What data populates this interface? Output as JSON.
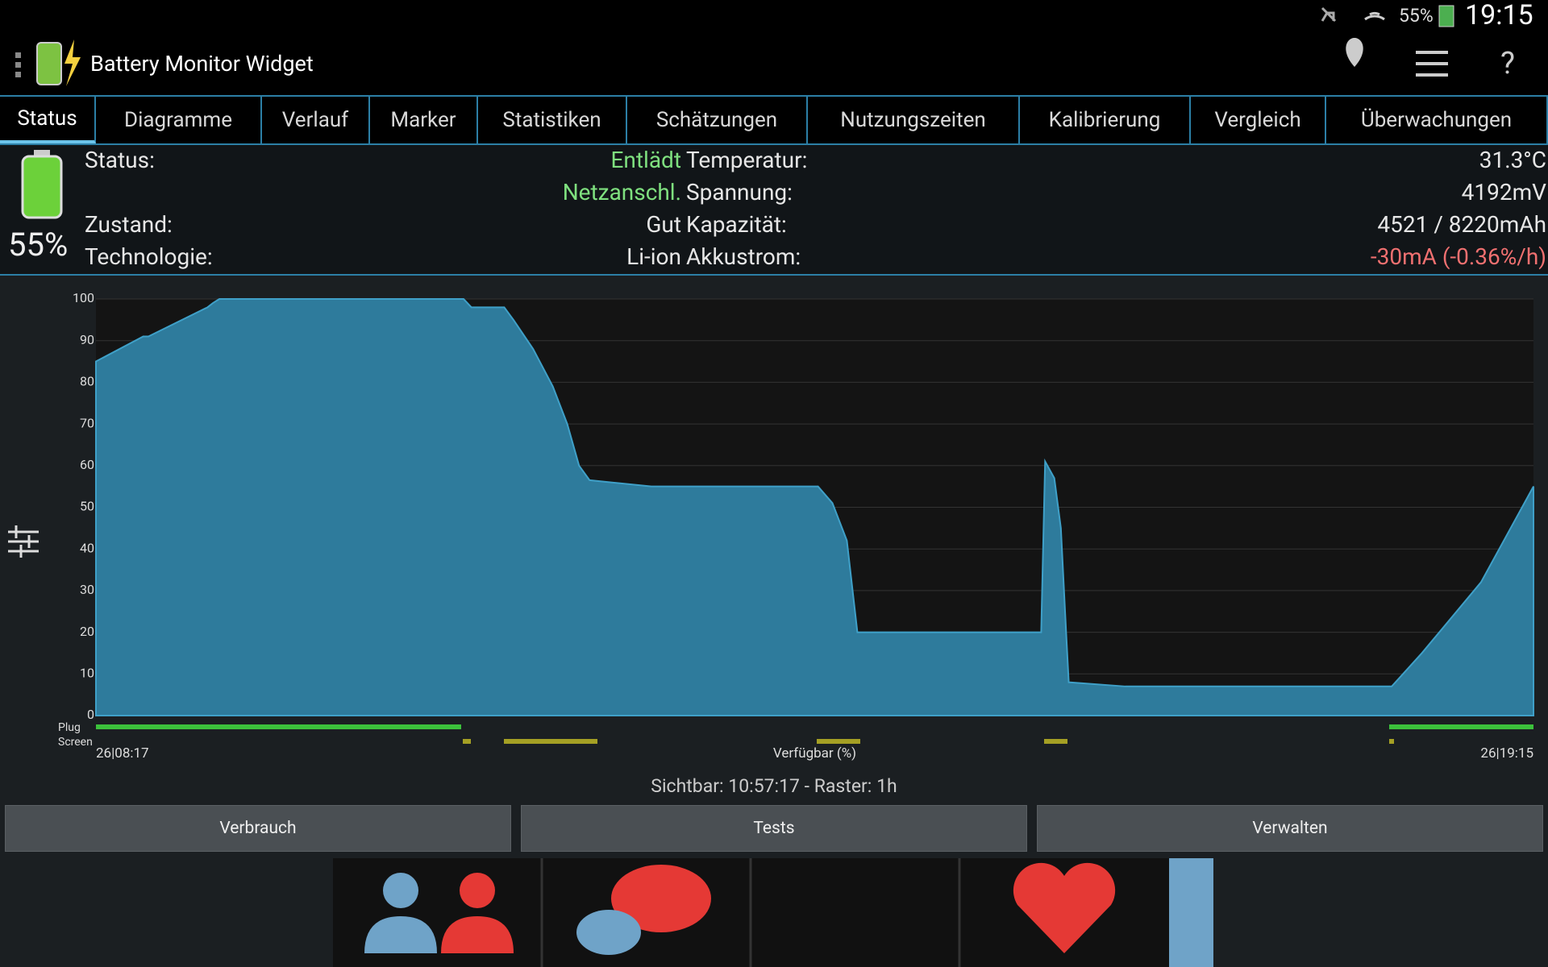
{
  "status_bar": {
    "battery": "55%",
    "time": "19:15"
  },
  "app_bar": {
    "title": "Battery Monitor Widget"
  },
  "tabs": [
    "Status",
    "Diagramme",
    "Verlauf",
    "Marker",
    "Statistiken",
    "Schätzungen",
    "Nutzungszeiten",
    "Kalibrierung",
    "Vergleich",
    "Überwachungen"
  ],
  "battery_level": "55%",
  "info": [
    {
      "label": "Status:",
      "value": "Entlädt",
      "label2": "Temperatur:",
      "value2": "31.3°C"
    },
    {
      "value": "Netzanschl.",
      "label2": "Spannung:",
      "value2": "4192mV"
    },
    {
      "label": "Zustand:",
      "value": "Gut",
      "label2": "Kapazität:",
      "value2": "4521 / 8220mAh"
    },
    {
      "label": "Technologie:",
      "value": "Li-ion",
      "label2": "Akkustrom:",
      "value2": "-30mA (-0.36%/h)"
    }
  ],
  "chart_data": {
    "type": "area",
    "xlabel": "Verfügbar (%)",
    "row_labels": [
      "Plug",
      "Screen"
    ],
    "color": "#2e7b9c",
    "line_color": "#3fa0c8",
    "x": [
      0,
      0.36,
      0.4,
      0.85,
      0.89,
      0.94,
      2.8,
      2.86,
      3.11,
      3.18,
      3.33,
      3.48,
      3.59,
      3.68,
      3.76,
      4.23,
      5.5,
      5.61,
      5.72,
      5.8,
      5.83,
      7.2,
      7.23,
      7.3,
      7.35,
      7.39,
      7.41,
      7.84,
      9.87,
      10.1,
      10.55,
      10.95
    ],
    "values": [
      85,
      91,
      91,
      98,
      99,
      100,
      100,
      98,
      98,
      95,
      88,
      79,
      70,
      60,
      56.5,
      55,
      55,
      51,
      42,
      20,
      20,
      20,
      61,
      57,
      45,
      20,
      8,
      7,
      7,
      15,
      32,
      55
    ],
    "xlim": [
      0,
      10.95
    ],
    "xticks": [
      {
        "value": 0,
        "label": "26|08:17"
      },
      {
        "value": 10.95,
        "label": "26|19:15"
      }
    ],
    "ylim": [
      0,
      100
    ],
    "yticks": [
      0,
      10,
      20,
      30,
      40,
      50,
      60,
      70,
      80,
      90,
      100
    ],
    "grid": true
  },
  "footer": "Sichtbar: 10:57:17 - Raster: 1h",
  "buttons": [
    "Verbrauch",
    "Tests",
    "Verwalten"
  ]
}
